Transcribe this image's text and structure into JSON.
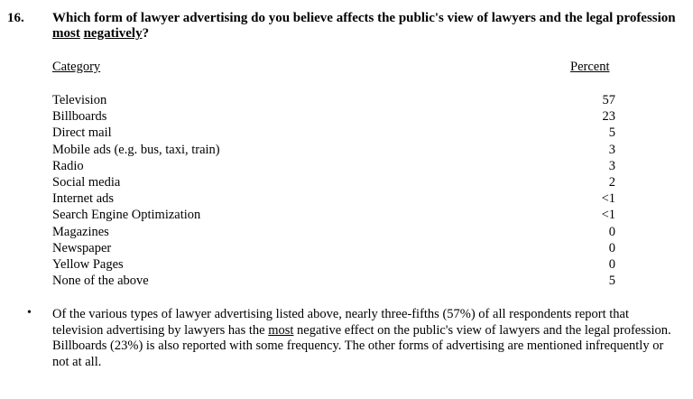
{
  "question": {
    "number": "16.",
    "text_before": "Which form of lawyer advertising do you believe affects the public's view of lawyers and the legal profession ",
    "emphasis_1": "most",
    "text_between": " ",
    "emphasis_2": "negatively",
    "text_after": "?"
  },
  "table": {
    "header_category": "Category",
    "header_percent": "Percent",
    "rows": [
      {
        "category": "Television",
        "percent": "57"
      },
      {
        "category": "Billboards",
        "percent": "23"
      },
      {
        "category": "Direct mail",
        "percent": "5"
      },
      {
        "category": "Mobile ads (e.g. bus, taxi, train)",
        "percent": "3"
      },
      {
        "category": "Radio",
        "percent": "3"
      },
      {
        "category": "Social media",
        "percent": "2"
      },
      {
        "category": "Internet ads",
        "percent": "<1"
      },
      {
        "category": "Search Engine Optimization",
        "percent": "<1"
      },
      {
        "category": "Magazines",
        "percent": "0"
      },
      {
        "category": "Newspaper",
        "percent": "0"
      },
      {
        "category": "Yellow Pages",
        "percent": "0"
      },
      {
        "category": "None of the above",
        "percent": "5"
      }
    ]
  },
  "summary": {
    "bullet": "•",
    "text_before": "Of the various types of lawyer advertising listed above, nearly three-fifths (57%) of all respondents report that television advertising by lawyers has the ",
    "emphasis": "most",
    "text_after": " negative effect on the public's view of lawyers and the legal profession. Billboards (23%) is also reported with some frequency. The other forms of advertising are mentioned infrequently or not at all."
  }
}
